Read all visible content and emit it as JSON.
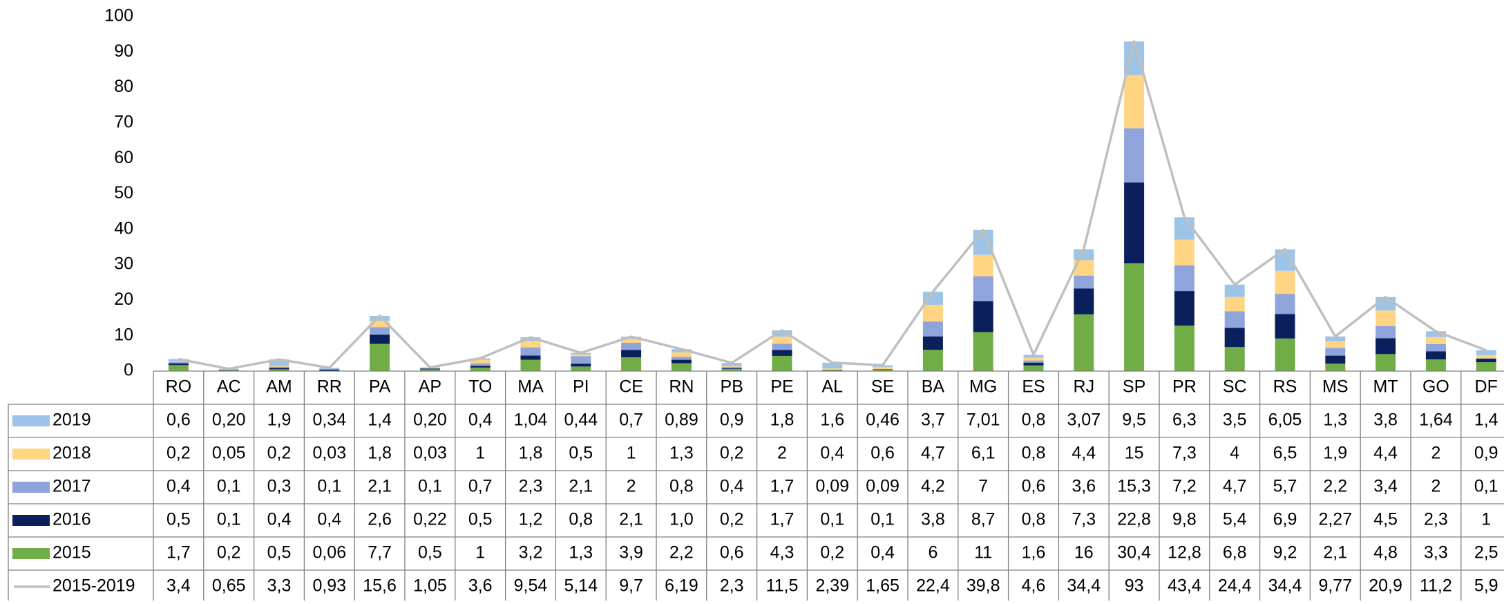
{
  "chart_data": {
    "type": "bar",
    "stacked": true,
    "title": "",
    "xlabel": "",
    "ylabel": "",
    "ylim": [
      0,
      100
    ],
    "yticks": [
      0,
      10,
      20,
      30,
      40,
      50,
      60,
      70,
      80,
      90,
      100
    ],
    "grid": false,
    "legend": "data-table",
    "categories": [
      "RO",
      "AC",
      "AM",
      "RR",
      "PA",
      "AP",
      "TO",
      "MA",
      "PI",
      "CE",
      "RN",
      "PB",
      "PE",
      "AL",
      "SE",
      "BA",
      "MG",
      "ES",
      "RJ",
      "SP",
      "PR",
      "SC",
      "RS",
      "MS",
      "MT",
      "GO",
      "DF"
    ],
    "series": [
      {
        "name": "2019",
        "color": "#9dc3e6",
        "values": [
          0.6,
          0.2,
          1.9,
          0.34,
          1.4,
          0.2,
          0.4,
          1.04,
          0.44,
          0.7,
          0.89,
          0.9,
          1.8,
          1.6,
          0.46,
          3.7,
          7.01,
          0.8,
          3.07,
          9.5,
          6.3,
          3.5,
          6.05,
          1.3,
          3.8,
          1.64,
          1.4
        ],
        "labels": [
          "0,6",
          "0,20",
          "1,9",
          "0,34",
          "1,4",
          "0,20",
          "0,4",
          "1,04",
          "0,44",
          "0,7",
          "0,89",
          "0,9",
          "1,8",
          "1,6",
          "0,46",
          "3,7",
          "7,01",
          "0,8",
          "3,07",
          "9,5",
          "6,3",
          "3,5",
          "6,05",
          "1,3",
          "3,8",
          "1,64",
          "1,4"
        ]
      },
      {
        "name": "2018",
        "color": "#ffd584",
        "values": [
          0.2,
          0.05,
          0.2,
          0.03,
          1.8,
          0.03,
          1,
          1.8,
          0.5,
          1,
          1.3,
          0.2,
          2,
          0.4,
          0.6,
          4.7,
          6.1,
          0.8,
          4.4,
          15,
          7.3,
          4,
          6.5,
          1.9,
          4.4,
          2,
          0.9
        ],
        "labels": [
          "0,2",
          "0,05",
          "0,2",
          "0,03",
          "1,8",
          "0,03",
          "1",
          "1,8",
          "0,5",
          "1",
          "1,3",
          "0,2",
          "2",
          "0,4",
          "0,6",
          "4,7",
          "6,1",
          "0,8",
          "4,4",
          "15",
          "7,3",
          "4",
          "6,5",
          "1,9",
          "4,4",
          "2",
          "0,9"
        ]
      },
      {
        "name": "2017",
        "color": "#8fa4da",
        "values": [
          0.4,
          0.1,
          0.3,
          0.1,
          2.1,
          0.1,
          0.7,
          2.3,
          2.1,
          2,
          0.8,
          0.4,
          1.7,
          0.09,
          0.09,
          4.2,
          7,
          0.6,
          3.6,
          15.3,
          7.2,
          4.7,
          5.7,
          2.2,
          3.4,
          2,
          0.1
        ],
        "labels": [
          "0,4",
          "0,1",
          "0,3",
          "0,1",
          "2,1",
          "0,1",
          "0,7",
          "2,3",
          "2,1",
          "2",
          "0,8",
          "0,4",
          "1,7",
          "0,09",
          "0,09",
          "4,2",
          "7",
          "0,6",
          "3,6",
          "15,3",
          "7,2",
          "4,7",
          "5,7",
          "2,2",
          "3,4",
          "2",
          "0,1"
        ]
      },
      {
        "name": "2016",
        "color": "#0a1f5c",
        "values": [
          0.5,
          0.1,
          0.4,
          0.4,
          2.6,
          0.22,
          0.5,
          1.2,
          0.8,
          2.1,
          1.0,
          0.2,
          1.7,
          0.1,
          0.1,
          3.8,
          8.7,
          0.8,
          7.3,
          22.8,
          9.8,
          5.4,
          6.9,
          2.27,
          4.5,
          2.3,
          1
        ],
        "labels": [
          "0,5",
          "0,1",
          "0,4",
          "0,4",
          "2,6",
          "0,22",
          "0,5",
          "1,2",
          "0,8",
          "2,1",
          "1,0",
          "0,2",
          "1,7",
          "0,1",
          "0,1",
          "3,8",
          "8,7",
          "0,8",
          "7,3",
          "22,8",
          "9,8",
          "5,4",
          "6,9",
          "2,27",
          "4,5",
          "2,3",
          "1"
        ]
      },
      {
        "name": "2015",
        "color": "#70ad47",
        "values": [
          1.7,
          0.2,
          0.5,
          0.06,
          7.7,
          0.5,
          1,
          3.2,
          1.3,
          3.9,
          2.2,
          0.6,
          4.3,
          0.2,
          0.4,
          6,
          11,
          1.6,
          16,
          30.4,
          12.8,
          6.8,
          9.2,
          2.1,
          4.8,
          3.3,
          2.5
        ],
        "labels": [
          "1,7",
          "0,2",
          "0,5",
          "0,06",
          "7,7",
          "0,5",
          "1",
          "3,2",
          "1,3",
          "3,9",
          "2,2",
          "0,6",
          "4,3",
          "0,2",
          "0,4",
          "6",
          "11",
          "1,6",
          "16",
          "30,4",
          "12,8",
          "6,8",
          "9,2",
          "2,1",
          "4,8",
          "3,3",
          "2,5"
        ]
      },
      {
        "name": "2015-2019",
        "color": "#bfbfbf",
        "kind": "line",
        "values": [
          3.4,
          0.65,
          3.3,
          0.93,
          15.6,
          1.05,
          3.6,
          9.54,
          5.14,
          9.7,
          6.19,
          2.3,
          11.5,
          2.39,
          1.65,
          22.4,
          39.8,
          4.6,
          34.4,
          93,
          43.4,
          24.4,
          34.4,
          9.77,
          20.9,
          11.2,
          5.9
        ],
        "labels": [
          "3,4",
          "0,65",
          "3,3",
          "0,93",
          "15,6",
          "1,05",
          "3,6",
          "9,54",
          "5,14",
          "9,7",
          "6,19",
          "2,3",
          "11,5",
          "2,39",
          "1,65",
          "22,4",
          "39,8",
          "4,6",
          "34,4",
          "93",
          "43,4",
          "24,4",
          "34,4",
          "9,77",
          "20,9",
          "11,2",
          "5,9"
        ]
      }
    ]
  }
}
